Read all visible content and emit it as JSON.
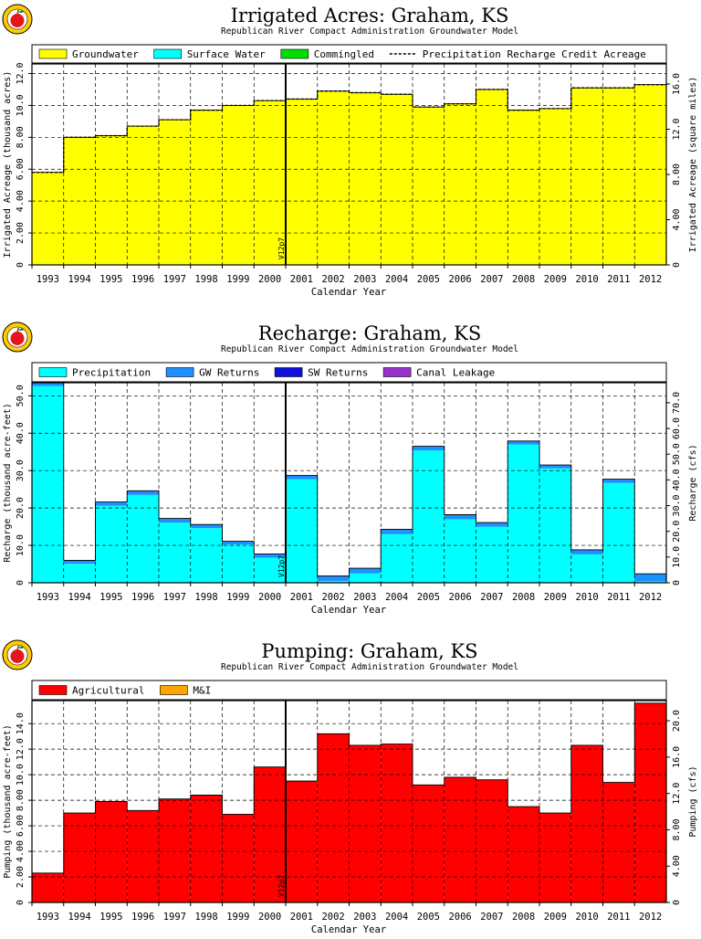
{
  "colors": {
    "groundwater": "#ffff00",
    "surface_water": "#00ffff",
    "commingled": "#00dd00",
    "precipitation": "#00ffff",
    "gw_returns": "#1e90ff",
    "sw_returns": "#1010dd",
    "canal_leakage": "#9932cc",
    "agricultural": "#ff0000",
    "mi": "#ffa500",
    "logo_apple": "#e8141c",
    "logo_ring": "#ffcc00"
  },
  "logo_icon": "apple-seal-icon",
  "chart_data": [
    {
      "type": "bar",
      "title": "Irrigated Acres: Graham, KS",
      "subtitle": "Republican River Compact Administration Groundwater Model",
      "xlabel": "Calendar Year",
      "ylabel": "Irrigated Acreage (thousand acres)",
      "ylabel_right": "Irrigated Acreage (square miles)",
      "categories": [
        "1993",
        "1994",
        "1995",
        "1996",
        "1997",
        "1998",
        "1999",
        "2000",
        "2001",
        "2002",
        "2003",
        "2004",
        "2005",
        "2006",
        "2007",
        "2008",
        "2009",
        "2010",
        "2011",
        "2012"
      ],
      "ylim": [
        0,
        12.6
      ],
      "yticks": [
        "0",
        "2.00",
        "4.00",
        "6.00",
        "8.00",
        "10.0",
        "12.0"
      ],
      "yticks_right": [
        "0",
        "4.00",
        "8.00",
        "12.0",
        "16.0"
      ],
      "grid": true,
      "marker_label": "V12p7",
      "marker_after": "2000",
      "series": [
        {
          "name": "Groundwater",
          "color_key": "groundwater",
          "values": [
            5.8,
            8.0,
            8.1,
            8.7,
            9.1,
            9.7,
            10.0,
            10.3,
            10.4,
            10.9,
            10.8,
            10.7,
            9.9,
            10.1,
            11.0,
            9.7,
            9.8,
            11.1,
            11.1,
            11.3
          ]
        },
        {
          "name": "Surface Water",
          "color_key": "surface_water",
          "values": [
            0,
            0,
            0,
            0,
            0,
            0,
            0,
            0,
            0,
            0,
            0,
            0,
            0,
            0,
            0,
            0,
            0,
            0,
            0,
            0
          ]
        },
        {
          "name": "Commingled",
          "color_key": "commingled",
          "values": [
            0,
            0,
            0,
            0,
            0,
            0,
            0,
            0,
            0,
            0,
            0,
            0,
            0,
            0,
            0,
            0,
            0,
            0,
            0,
            0
          ]
        }
      ],
      "line_series": {
        "name": "Precipitation Recharge Credit Acreage",
        "values": [
          5.8,
          8.0,
          8.1,
          8.7,
          9.1,
          9.7,
          10.0,
          10.3,
          10.4,
          10.9,
          10.8,
          10.7,
          9.9,
          10.1,
          11.0,
          9.7,
          9.8,
          11.1,
          11.1,
          11.3
        ]
      }
    },
    {
      "type": "bar",
      "title": "Recharge: Graham, KS",
      "subtitle": "Republican River Compact Administration Groundwater Model",
      "xlabel": "Calendar Year",
      "ylabel": "Recharge (thousand acre-feet)",
      "ylabel_right": "Recharge (cfs)",
      "categories": [
        "1993",
        "1994",
        "1995",
        "1996",
        "1997",
        "1998",
        "1999",
        "2000",
        "2001",
        "2002",
        "2003",
        "2004",
        "2005",
        "2006",
        "2007",
        "2008",
        "2009",
        "2010",
        "2011",
        "2012"
      ],
      "ylim": [
        0,
        53.5
      ],
      "yticks": [
        "0",
        "10.0",
        "20.0",
        "30.0",
        "40.0",
        "50.0"
      ],
      "yticks_right": [
        "0",
        "10.0",
        "20.0",
        "30.0",
        "40.0",
        "50.0",
        "60.0",
        "70.0"
      ],
      "grid": true,
      "marker_label": "V12p7",
      "marker_after": "2000",
      "series": [
        {
          "name": "Precipitation",
          "color_key": "precipitation",
          "values": [
            52.6,
            5.1,
            20.6,
            23.5,
            16.1,
            14.6,
            10.2,
            6.7,
            27.7,
            0.5,
            2.5,
            13.0,
            35.4,
            17.0,
            15.0,
            37.0,
            30.6,
            7.6,
            26.7,
            0.4
          ]
        },
        {
          "name": "GW Returns",
          "color_key": "gw_returns",
          "values": [
            0.9,
            0.9,
            1.0,
            1.1,
            1.1,
            1.0,
            0.9,
            1.0,
            1.0,
            1.3,
            1.4,
            1.3,
            1.1,
            1.2,
            1.1,
            0.9,
            0.9,
            1.2,
            1.0,
            2.0
          ]
        },
        {
          "name": "SW Returns",
          "color_key": "sw_returns",
          "values": [
            0,
            0,
            0,
            0,
            0,
            0,
            0,
            0,
            0,
            0,
            0,
            0,
            0,
            0,
            0,
            0,
            0,
            0,
            0,
            0
          ]
        },
        {
          "name": "Canal Leakage",
          "color_key": "canal_leakage",
          "values": [
            0,
            0,
            0,
            0,
            0,
            0,
            0,
            0,
            0,
            0,
            0,
            0,
            0,
            0,
            0,
            0,
            0,
            0,
            0,
            0
          ]
        }
      ]
    },
    {
      "type": "bar",
      "title": "Pumping: Graham, KS",
      "subtitle": "Republican River Compact Administration Groundwater Model",
      "xlabel": "Calendar Year",
      "ylabel": "Pumping (thousand acre-feet)",
      "ylabel_right": "Pumping (cfs)",
      "categories": [
        "1993",
        "1994",
        "1995",
        "1996",
        "1997",
        "1998",
        "1999",
        "2000",
        "2001",
        "2002",
        "2003",
        "2004",
        "2005",
        "2006",
        "2007",
        "2008",
        "2009",
        "2010",
        "2011",
        "2012"
      ],
      "ylim": [
        0,
        15.8
      ],
      "yticks": [
        "0",
        "2.00",
        "4.00",
        "6.00",
        "8.00",
        "10.0",
        "12.0",
        "14.0"
      ],
      "yticks_right": [
        "0",
        "4.00",
        "8.00",
        "12.0",
        "16.0",
        "20.0"
      ],
      "grid": true,
      "marker_label": "V12p7",
      "marker_after": "2000",
      "series": [
        {
          "name": "Agricultural",
          "color_key": "agricultural",
          "values": [
            2.3,
            7.0,
            7.9,
            7.2,
            8.1,
            8.4,
            6.9,
            10.6,
            9.5,
            13.2,
            12.3,
            12.4,
            9.2,
            9.8,
            9.6,
            7.5,
            7.0,
            12.3,
            9.4,
            15.6
          ]
        },
        {
          "name": "M&I",
          "color_key": "mi",
          "values": [
            0,
            0,
            0,
            0,
            0,
            0,
            0,
            0,
            0,
            0,
            0,
            0,
            0,
            0,
            0,
            0,
            0,
            0,
            0,
            0
          ]
        }
      ]
    }
  ]
}
